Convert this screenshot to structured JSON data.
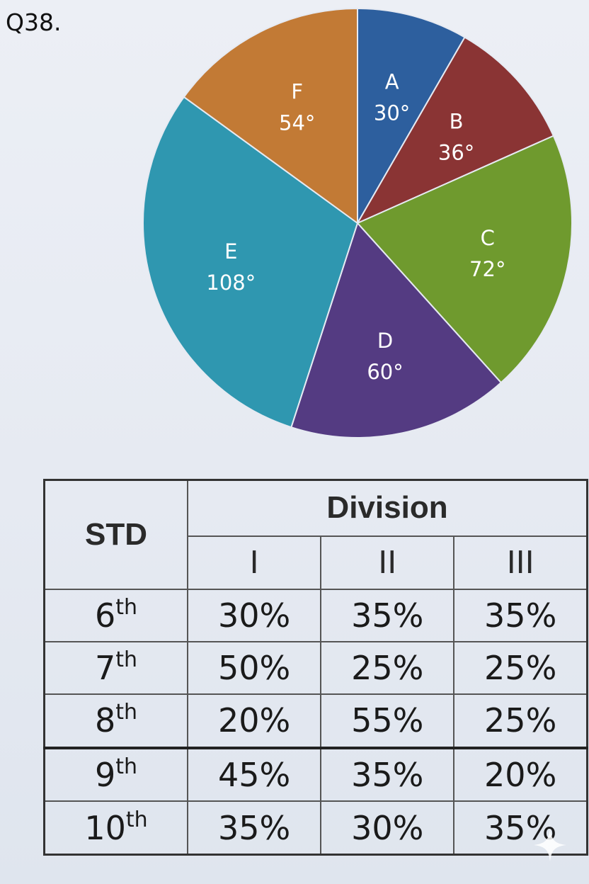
{
  "question_label": "Q38.",
  "chart_data": {
    "type": "pie",
    "title": "",
    "unit": "°",
    "slices": [
      {
        "label": "A",
        "value": 30,
        "value_text": "30°",
        "color": "#2d5f9e"
      },
      {
        "label": "B",
        "value": 36,
        "value_text": "36°",
        "color": "#8a3434"
      },
      {
        "label": "C",
        "value": 72,
        "value_text": "72°",
        "color": "#6f9a2e"
      },
      {
        "label": "D",
        "value": 60,
        "value_text": "60°",
        "color": "#543b82"
      },
      {
        "label": "E",
        "value": 108,
        "value_text": "108°",
        "color": "#2f97b0"
      },
      {
        "label": "F",
        "value": 54,
        "value_text": "54°",
        "color": "#c27a35"
      }
    ]
  },
  "table": {
    "std_header": "STD",
    "division_header": "Division",
    "division_columns": [
      "I",
      "II",
      "III"
    ],
    "rows": [
      {
        "std": "6",
        "sup": "th",
        "values": [
          "30%",
          "35%",
          "35%"
        ]
      },
      {
        "std": "7",
        "sup": "th",
        "values": [
          "50%",
          "25%",
          "25%"
        ]
      },
      {
        "std": "8",
        "sup": "th",
        "values": [
          "20%",
          "55%",
          "25%"
        ]
      },
      {
        "std": "9",
        "sup": "th",
        "values": [
          "45%",
          "35%",
          "20%"
        ]
      },
      {
        "std": "10",
        "sup": "th",
        "values": [
          "35%",
          "30%",
          "35%"
        ]
      }
    ]
  },
  "sparkle_icon": "sparkle-icon"
}
